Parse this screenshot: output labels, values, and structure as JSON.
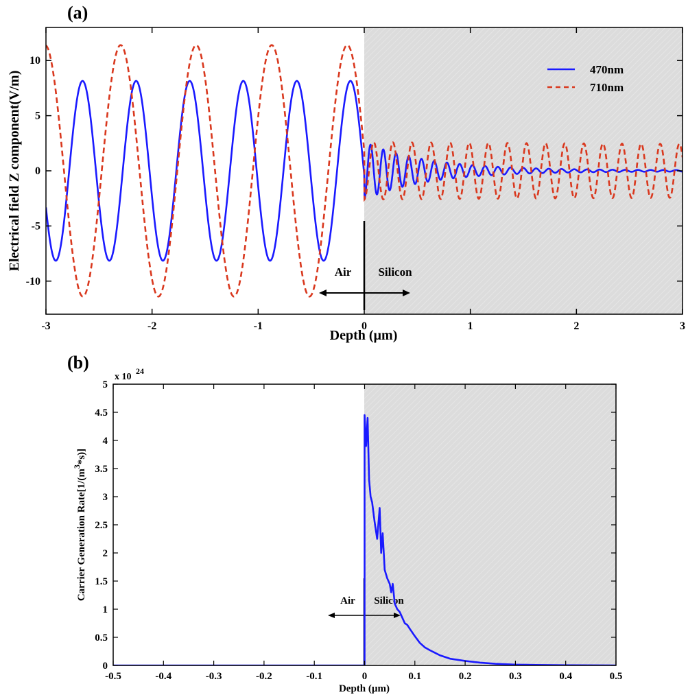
{
  "chart_data": [
    {
      "panel_label": "(a)",
      "type": "line",
      "xlabel": "Depth (µm)",
      "ylabel": "Electrical field Z component(V/m)",
      "xlim": [
        -3,
        3
      ],
      "ylim": [
        -13,
        13
      ],
      "xticks": [
        -3,
        -2,
        -1,
        0,
        1,
        2,
        3
      ],
      "xtick_labels": [
        "-3",
        "-2",
        "-1",
        "0",
        "1",
        "2",
        "3"
      ],
      "yticks": [
        -10,
        -5,
        0,
        5,
        10
      ],
      "ytick_labels": [
        "-10",
        "-5",
        "0",
        "5",
        "10"
      ],
      "grid": false,
      "legend_position": "top-right",
      "shaded_region": {
        "x_from": 0,
        "x_to": 3,
        "color": "#dcdcdc"
      },
      "annotations": {
        "left_label": "Air",
        "right_label": "Silicon",
        "interface_x": 0
      },
      "series": [
        {
          "name": "470nm",
          "color": "#1a1aff",
          "style": "solid",
          "air": {
            "amplitude": 8.15,
            "period_um": 0.505,
            "peak_x": -0.13
          },
          "silicon": {
            "amplitude_at_interface": 2.6,
            "decay_length_um": 0.6,
            "period_um": 0.12,
            "end_amplitude": 0.05
          },
          "interface_value": -2.6
        },
        {
          "name": "710nm",
          "color": "#d9381e",
          "style": "dashed",
          "air": {
            "amplitude": 11.4,
            "period_um": 0.712,
            "peak_x": -0.16
          },
          "silicon": {
            "amplitude_at_interface": 2.6,
            "decay_length_um": 6.0,
            "period_um": 0.18,
            "end_amplitude": 2.2
          },
          "interface_value": -2.8
        }
      ]
    },
    {
      "panel_label": "(b)",
      "type": "line",
      "xlabel": "Depth (µm)",
      "ylabel": "Carrier Generation Rate[1/(m",
      "ylabel_sup": "3",
      "ylabel_tail": "*s)]",
      "y_multiplier_label": "x 10",
      "y_multiplier_exp": "24",
      "xlim": [
        -0.5,
        0.5
      ],
      "ylim": [
        0,
        5
      ],
      "xticks": [
        -0.5,
        -0.4,
        -0.3,
        -0.2,
        -0.1,
        0,
        0.1,
        0.2,
        0.3,
        0.4,
        0.5
      ],
      "xtick_labels": [
        "-0.5",
        "-0.4",
        "-0.3",
        "-0.2",
        "-0.1",
        "0",
        "0.1",
        "0.2",
        "0.3",
        "0.4",
        "0.5"
      ],
      "yticks": [
        0,
        0.5,
        1,
        1.5,
        2,
        2.5,
        3,
        3.5,
        4,
        4.5,
        5
      ],
      "ytick_labels": [
        "0",
        "0.5",
        "1",
        "1.5",
        "2",
        "2.5",
        "3",
        "3.5",
        "4",
        "4.5",
        "5"
      ],
      "grid": false,
      "shaded_region": {
        "x_from": 0,
        "x_to": 0.5,
        "color": "#dcdcdc"
      },
      "annotations": {
        "left_label": "Air",
        "right_label": "Silicon",
        "interface_x": 0
      },
      "series": [
        {
          "color": "#1a1aff",
          "style": "solid",
          "x": [
            -0.5,
            0.0,
            0.0,
            0.003,
            0.006,
            0.009,
            0.012,
            0.015,
            0.02,
            0.025,
            0.03,
            0.033,
            0.036,
            0.04,
            0.045,
            0.05,
            0.053,
            0.056,
            0.06,
            0.065,
            0.07,
            0.075,
            0.08,
            0.085,
            0.09,
            0.1,
            0.11,
            0.12,
            0.13,
            0.15,
            0.17,
            0.2,
            0.23,
            0.26,
            0.3,
            0.34,
            0.4,
            0.5
          ],
          "y": [
            0.0,
            0.0,
            4.45,
            3.9,
            4.4,
            3.3,
            3.0,
            2.9,
            2.55,
            2.25,
            2.8,
            2.0,
            2.35,
            1.7,
            1.55,
            1.45,
            1.3,
            1.45,
            1.1,
            1.0,
            0.95,
            0.85,
            0.75,
            0.72,
            0.65,
            0.52,
            0.4,
            0.32,
            0.27,
            0.18,
            0.12,
            0.08,
            0.05,
            0.03,
            0.015,
            0.008,
            0.004,
            0.0
          ]
        }
      ]
    }
  ]
}
